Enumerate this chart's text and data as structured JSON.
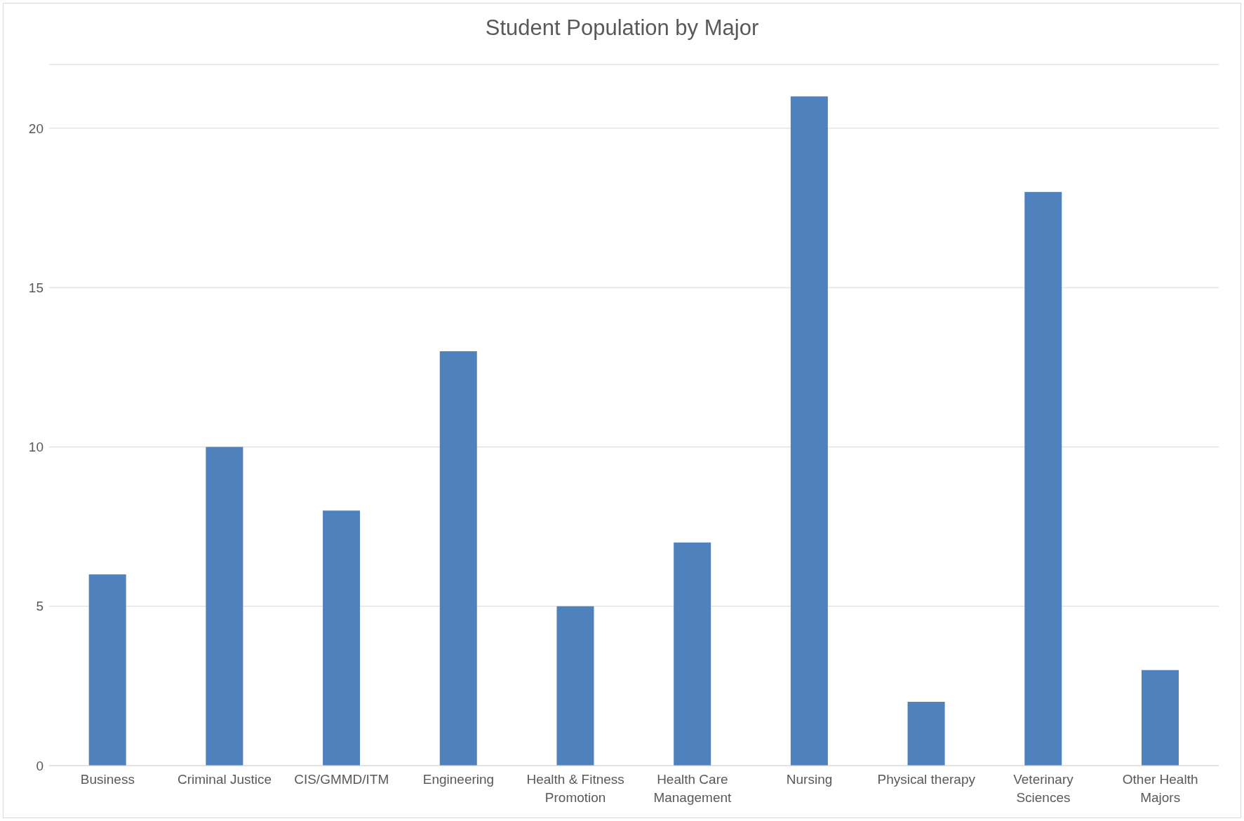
{
  "chart_data": {
    "type": "bar",
    "title": "Student Population by Major",
    "categories": [
      "Business",
      "Criminal Justice",
      "CIS/GMMD/ITM",
      "Engineering",
      "Health & Fitness Promotion",
      "Health Care Management",
      "Nursing",
      "Physical therapy",
      "Veterinary Sciences",
      "Other Health Majors"
    ],
    "values": [
      6,
      10,
      8,
      13,
      5,
      7,
      21,
      2,
      18,
      3
    ],
    "color": "#4f81bd",
    "ylim": [
      0,
      22
    ],
    "yticks": [
      0,
      5,
      10,
      15,
      20
    ],
    "grid": "y",
    "legend": false
  }
}
